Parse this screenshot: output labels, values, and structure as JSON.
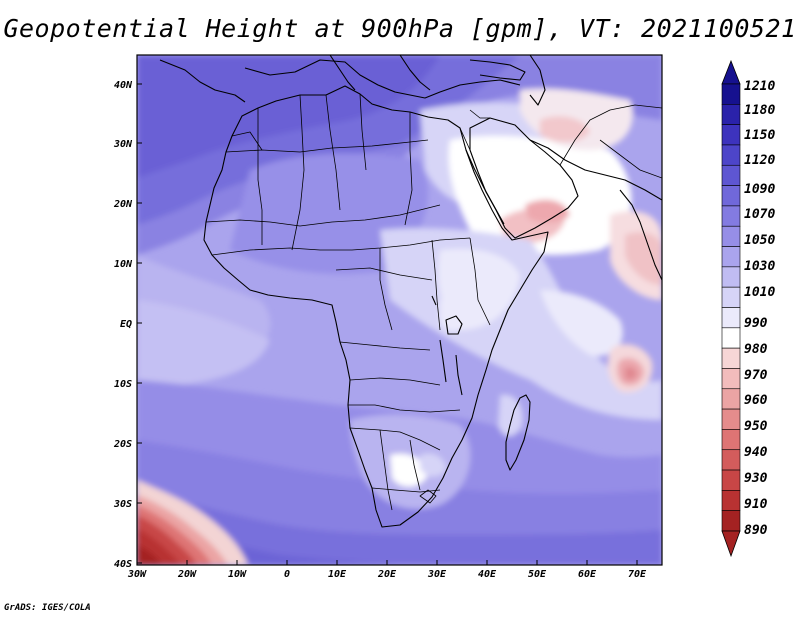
{
  "title": "Geopotential Height at 900hPa [gpm], VT: 2021100521",
  "lat_labels": [
    "40N",
    "30N",
    "20N",
    "10N",
    "EQ",
    "10S",
    "20S",
    "30S",
    "40S"
  ],
  "lon_labels": [
    "30W",
    "20W",
    "10W",
    "0",
    "10E",
    "20E",
    "30E",
    "40E",
    "50E",
    "60E",
    "70E"
  ],
  "colorbar": {
    "levels": [
      "1210",
      "1180",
      "1150",
      "1120",
      "1090",
      "1070",
      "1050",
      "1030",
      "1010",
      "990",
      "980",
      "970",
      "960",
      "950",
      "940",
      "930",
      "910",
      "890"
    ],
    "colors": [
      "#16118f",
      "#2a22aa",
      "#3d33bd",
      "#4d45c9",
      "#5e56d2",
      "#7068da",
      "#837be1",
      "#968ee7",
      "#aaa4ed",
      "#c0bcf2",
      "#d6d4f7",
      "#ebeafb",
      "#ffffff",
      "#f7d6d6",
      "#f2bcbc",
      "#eba4a4",
      "#e58c8c",
      "#de7474",
      "#d35c5c",
      "#c84646",
      "#b83232",
      "#a42222"
    ]
  },
  "credit": "GrADS: IGES/COLA"
}
